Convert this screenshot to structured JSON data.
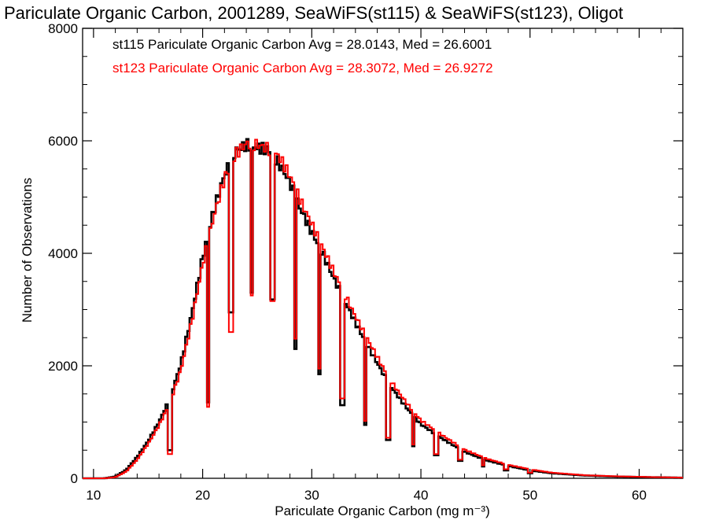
{
  "chart_data": {
    "type": "step-histogram",
    "title": "Pariculate Organic Carbon, 2001289, SeaWiFS(st115) & SeaWiFS(st123), Oligot",
    "xlabel": "Pariculate Organic Carbon (mg m⁻³)",
    "ylabel": "Number of Observations",
    "xlim": [
      9,
      64
    ],
    "ylim": [
      0,
      8000
    ],
    "x_ticks": [
      10,
      20,
      30,
      40,
      50,
      60
    ],
    "y_ticks": [
      0,
      2000,
      4000,
      6000,
      8000
    ],
    "grid": false,
    "legend": [
      {
        "text": "st115 Pariculate Organic Carbon Avg = 28.0143, Med = 26.6001",
        "color": "#000000"
      },
      {
        "text": "st123 Pariculate Organic Carbon Avg = 28.3072, Med = 26.9272",
        "color": "#ff0000"
      }
    ],
    "series": [
      {
        "color": "#000000",
        "shape": {
          "xs": [
            9,
            11,
            12,
            13,
            14,
            15,
            16,
            17,
            18,
            19,
            20,
            21,
            22,
            23,
            24,
            25,
            26,
            27,
            28,
            29,
            30,
            31,
            32,
            33,
            34,
            35,
            36,
            37,
            38,
            39,
            40,
            42,
            44,
            46,
            48,
            50,
            52,
            55,
            58,
            61,
            64
          ],
          "ys": [
            0,
            0,
            30,
            150,
            380,
            660,
            1000,
            1420,
            2030,
            2920,
            3930,
            4750,
            5400,
            5820,
            5930,
            5880,
            5840,
            5600,
            5260,
            4770,
            4380,
            4000,
            3560,
            3160,
            2770,
            2400,
            2050,
            1700,
            1430,
            1180,
            960,
            700,
            470,
            320,
            220,
            140,
            90,
            50,
            30,
            20,
            10
          ]
        },
        "dips": [
          [
            17.0,
            500
          ],
          [
            20.5,
            1350
          ],
          [
            22.6,
            2950
          ],
          [
            24.5,
            3300
          ],
          [
            26.4,
            3180
          ],
          [
            28.5,
            2300
          ],
          [
            30.7,
            1850
          ],
          [
            32.8,
            1300
          ],
          [
            34.9,
            950
          ],
          [
            37.0,
            680
          ],
          [
            39.3,
            570
          ],
          [
            41.4,
            410
          ],
          [
            43.6,
            310
          ],
          [
            45.7,
            210
          ],
          [
            47.8,
            140
          ],
          [
            50.0,
            90
          ]
        ]
      },
      {
        "color": "#ff0000",
        "shape": {
          "xs": [
            9,
            11,
            12,
            13,
            14,
            15,
            16,
            17,
            18,
            19,
            20,
            21,
            22,
            23,
            24,
            25,
            26,
            27,
            28,
            29,
            30,
            31,
            32,
            33,
            34,
            35,
            36,
            37,
            38,
            39,
            40,
            42,
            44,
            46,
            48,
            50,
            52,
            55,
            58,
            61,
            64
          ],
          "ys": [
            0,
            0,
            20,
            120,
            330,
            610,
            940,
            1340,
            1920,
            2780,
            3810,
            4640,
            5330,
            5760,
            5950,
            5930,
            5860,
            5720,
            5380,
            4920,
            4520,
            4100,
            3680,
            3280,
            2880,
            2510,
            2160,
            1800,
            1520,
            1260,
            1030,
            760,
            510,
            350,
            240,
            160,
            100,
            55,
            35,
            22,
            12
          ]
        },
        "dips": [
          [
            17.0,
            430
          ],
          [
            20.5,
            1270
          ],
          [
            22.6,
            2600
          ],
          [
            24.5,
            3250
          ],
          [
            26.4,
            3150
          ],
          [
            28.5,
            2480
          ],
          [
            30.7,
            1950
          ],
          [
            32.8,
            1420
          ],
          [
            34.9,
            1020
          ],
          [
            37.0,
            720
          ],
          [
            39.3,
            600
          ],
          [
            41.4,
            430
          ],
          [
            43.6,
            330
          ],
          [
            45.7,
            230
          ],
          [
            47.8,
            160
          ],
          [
            50.0,
            100
          ]
        ]
      }
    ]
  }
}
